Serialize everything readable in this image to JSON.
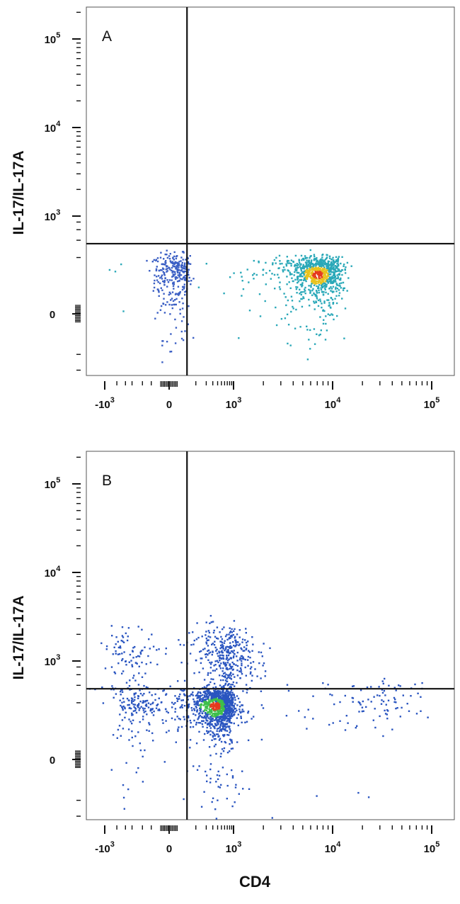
{
  "chart_data": [
    {
      "type": "scatter",
      "panel_label": "A",
      "xlabel": "",
      "ylabel": "IL-17/IL-17A",
      "x_scale": "biexponential",
      "y_scale": "biexponential",
      "xlim": [
        -2000,
        220000
      ],
      "ylim": [
        -800,
        230000
      ],
      "x_ticks": [
        {
          "value": -1000,
          "base": "10",
          "exp": "3",
          "neg": true
        },
        {
          "value": 0,
          "text": "0"
        },
        {
          "value": 1000,
          "base": "10",
          "exp": "3"
        },
        {
          "value": 10000,
          "base": "10",
          "exp": "4"
        },
        {
          "value": 100000,
          "base": "10",
          "exp": "5"
        }
      ],
      "y_ticks": [
        {
          "value": 0,
          "text": "0"
        },
        {
          "value": 1000,
          "base": "10",
          "exp": "3"
        },
        {
          "value": 10000,
          "base": "10",
          "exp": "4"
        },
        {
          "value": 100000,
          "base": "10",
          "exp": "5"
        }
      ],
      "quadrant_gate": {
        "x": 50,
        "y": 350
      },
      "populations": [
        {
          "x": 10,
          "y": 100,
          "sx": 25,
          "sy": 70,
          "n": 300,
          "color": "#3b5fc4"
        },
        {
          "x": 7000,
          "y": 100,
          "sx": 2600,
          "sy": 55,
          "n": 900,
          "color": "#2aa8b8",
          "core_color": "#e8c21c",
          "hot_color": "#e53a1d"
        }
      ]
    },
    {
      "type": "scatter",
      "panel_label": "B",
      "xlabel": "CD4",
      "ylabel": "IL-17/IL-17A",
      "x_scale": "biexponential",
      "y_scale": "biexponential",
      "xlim": [
        -2000,
        220000
      ],
      "ylim": [
        -800,
        230000
      ],
      "x_ticks": [
        {
          "value": -1000,
          "base": "10",
          "exp": "3",
          "neg": true
        },
        {
          "value": 0,
          "text": "0"
        },
        {
          "value": 1000,
          "base": "10",
          "exp": "3"
        },
        {
          "value": 10000,
          "base": "10",
          "exp": "4"
        },
        {
          "value": 100000,
          "base": "10",
          "exp": "5"
        }
      ],
      "y_ticks": [
        {
          "value": 0,
          "text": "0"
        },
        {
          "value": 1000,
          "base": "10",
          "exp": "3"
        },
        {
          "value": 10000,
          "base": "10",
          "exp": "4"
        },
        {
          "value": 100000,
          "base": "10",
          "exp": "5"
        }
      ],
      "quadrant_gate": {
        "x": 50,
        "y": 350
      },
      "populations": [
        {
          "x": 350,
          "y": 180,
          "sx": 300,
          "sy": 90,
          "n": 1300,
          "color": "#2a55c0",
          "core_color": "#3fbf4a",
          "hot_color": "#e53a1d"
        },
        {
          "x": 500,
          "y": 1000,
          "sx": 600,
          "sy": 700,
          "n": 550,
          "color": "#2a55c0"
        },
        {
          "x": 8000,
          "y": 200,
          "sx": 30000,
          "sy": 120,
          "n": 180,
          "color": "#2a55c0"
        }
      ]
    }
  ]
}
